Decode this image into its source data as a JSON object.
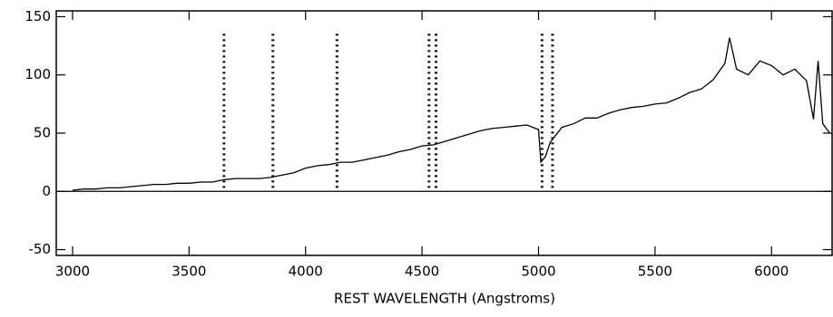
{
  "chart_data": {
    "type": "line",
    "xlabel": "REST WAVELENGTH (Angstroms)",
    "xlim": [
      2930,
      6260
    ],
    "ylim": [
      -55,
      155
    ],
    "xticks": [
      3000,
      3500,
      4000,
      4500,
      5000,
      5500,
      6000
    ],
    "yticks": [
      -50,
      0,
      50,
      100,
      150
    ],
    "zero_line": 0,
    "markers": [
      3650,
      3860,
      4135,
      4530,
      4560,
      5015,
      5060
    ],
    "marker_range": [
      3,
      137
    ],
    "series": [
      {
        "color": "#000000",
        "x": [
          3000,
          3050,
          3100,
          3150,
          3200,
          3250,
          3300,
          3350,
          3400,
          3450,
          3500,
          3550,
          3600,
          3650,
          3700,
          3750,
          3800,
          3850,
          3900,
          3950,
          4000,
          4050,
          4100,
          4150,
          4200,
          4250,
          4300,
          4350,
          4400,
          4450,
          4500,
          4550,
          4600,
          4650,
          4700,
          4750,
          4800,
          4850,
          4900,
          4950,
          5000,
          5010,
          5030,
          5050,
          5100,
          5150,
          5200,
          5250,
          5300,
          5350,
          5400,
          5450,
          5500,
          5550,
          5600,
          5650,
          5700,
          5750,
          5800,
          5820,
          5850,
          5900,
          5950,
          6000,
          6050,
          6100,
          6150,
          6180,
          6200,
          6220,
          6250
        ],
        "values": [
          1,
          2,
          2,
          3,
          3,
          4,
          5,
          6,
          6,
          7,
          7,
          8,
          8,
          10,
          11,
          11,
          11,
          12,
          14,
          16,
          20,
          22,
          23,
          25,
          25,
          27,
          29,
          31,
          34,
          36,
          39,
          40,
          43,
          46,
          49,
          52,
          54,
          55,
          56,
          57,
          53,
          25,
          30,
          42,
          55,
          58,
          63,
          63,
          67,
          70,
          72,
          73,
          75,
          76,
          80,
          85,
          88,
          96,
          110,
          132,
          105,
          100,
          112,
          108,
          100,
          105,
          95,
          62,
          112,
          58,
          50
        ]
      }
    ]
  }
}
